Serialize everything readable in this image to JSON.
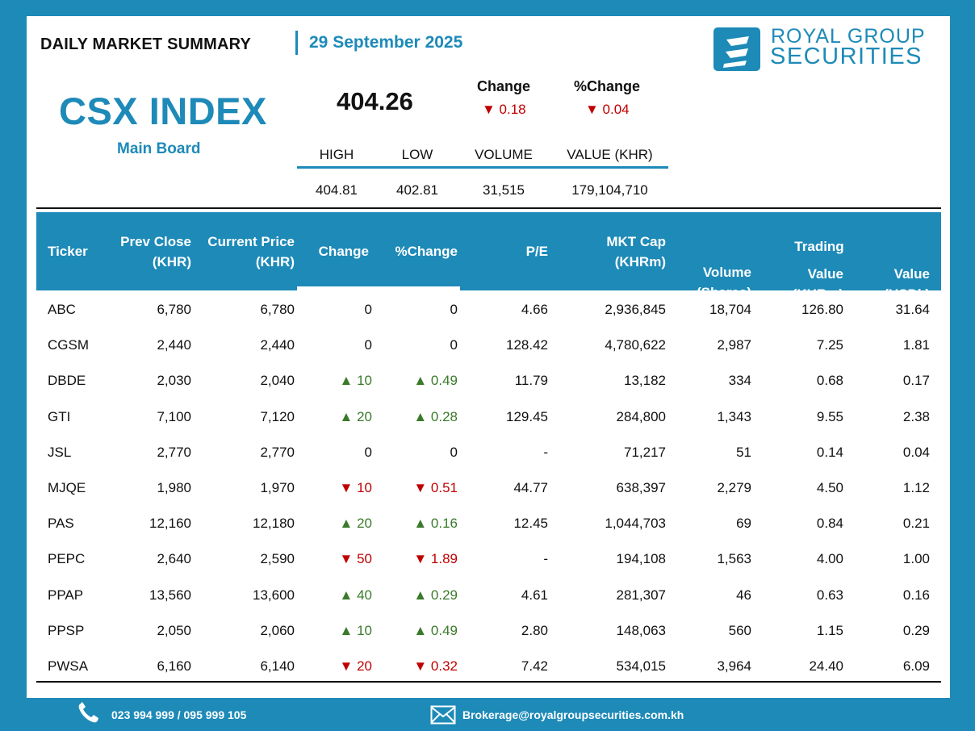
{
  "header": {
    "title": "DAILY MARKET SUMMARY",
    "date": "29 September 2025",
    "logo_line1": "ROYAL GROUP",
    "logo_line2": "SECURITIES"
  },
  "index": {
    "name": "CSX INDEX",
    "board": "Main Board",
    "value": "404.26",
    "change_label": "Change",
    "pchange_label": "%Change",
    "change": "▼ 0.18",
    "pchange": "▼ 0.04",
    "stats_headers": [
      "HIGH",
      "LOW",
      "VOLUME",
      "VALUE (KHR)"
    ],
    "stats_values": [
      "404.81",
      "402.81",
      "31,515",
      "179,104,710"
    ]
  },
  "table": {
    "headers": {
      "ticker": "Ticker",
      "prev_close": "Prev Close",
      "prev_close_unit": "(KHR)",
      "current_price": "Current Price",
      "current_price_unit": "(KHR)",
      "change": "Change",
      "pchange": "%Change",
      "pe": "P/E",
      "mktcap": "MKT Cap",
      "mktcap_unit": "(KHRm)",
      "volume": "Volume",
      "volume_unit": "(Shares)",
      "trading_group": "Trading",
      "value_khr": "Value",
      "value_khr_unit": "(KHRm)",
      "value_usd": "Value",
      "value_usd_unit": "(USDk)"
    },
    "rows": [
      {
        "ticker": "ABC",
        "prev": "6,780",
        "cur": "6,780",
        "chg": "0",
        "pchg": "0",
        "dir": "flat",
        "pe": "4.66",
        "mktcap": "2,936,845",
        "vol": "18,704",
        "val_khr": "126.80",
        "val_usd": "31.64"
      },
      {
        "ticker": "CGSM",
        "prev": "2,440",
        "cur": "2,440",
        "chg": "0",
        "pchg": "0",
        "dir": "flat",
        "pe": "128.42",
        "mktcap": "4,780,622",
        "vol": "2,987",
        "val_khr": "7.25",
        "val_usd": "1.81"
      },
      {
        "ticker": "DBDE",
        "prev": "2,030",
        "cur": "2,040",
        "chg": "▲ 10",
        "pchg": "▲ 0.49",
        "dir": "up",
        "pe": "11.79",
        "mktcap": "13,182",
        "vol": "334",
        "val_khr": "0.68",
        "val_usd": "0.17"
      },
      {
        "ticker": "GTI",
        "prev": "7,100",
        "cur": "7,120",
        "chg": "▲ 20",
        "pchg": "▲ 0.28",
        "dir": "up",
        "pe": "129.45",
        "mktcap": "284,800",
        "vol": "1,343",
        "val_khr": "9.55",
        "val_usd": "2.38"
      },
      {
        "ticker": "JSL",
        "prev": "2,770",
        "cur": "2,770",
        "chg": "0",
        "pchg": "0",
        "dir": "flat",
        "pe": "-",
        "mktcap": "71,217",
        "vol": "51",
        "val_khr": "0.14",
        "val_usd": "0.04"
      },
      {
        "ticker": "MJQE",
        "prev": "1,980",
        "cur": "1,970",
        "chg": "▼ 10",
        "pchg": "▼ 0.51",
        "dir": "dn",
        "pe": "44.77",
        "mktcap": "638,397",
        "vol": "2,279",
        "val_khr": "4.50",
        "val_usd": "1.12"
      },
      {
        "ticker": "PAS",
        "prev": "12,160",
        "cur": "12,180",
        "chg": "▲ 20",
        "pchg": "▲ 0.16",
        "dir": "up",
        "pe": "12.45",
        "mktcap": "1,044,703",
        "vol": "69",
        "val_khr": "0.84",
        "val_usd": "0.21"
      },
      {
        "ticker": "PEPC",
        "prev": "2,640",
        "cur": "2,590",
        "chg": "▼ 50",
        "pchg": "▼ 1.89",
        "dir": "dn",
        "pe": "-",
        "mktcap": "194,108",
        "vol": "1,563",
        "val_khr": "4.00",
        "val_usd": "1.00"
      },
      {
        "ticker": "PPAP",
        "prev": "13,560",
        "cur": "13,600",
        "chg": "▲ 40",
        "pchg": "▲ 0.29",
        "dir": "up",
        "pe": "4.61",
        "mktcap": "281,307",
        "vol": "46",
        "val_khr": "0.63",
        "val_usd": "0.16"
      },
      {
        "ticker": "PPSP",
        "prev": "2,050",
        "cur": "2,060",
        "chg": "▲ 10",
        "pchg": "▲ 0.49",
        "dir": "up",
        "pe": "2.80",
        "mktcap": "148,063",
        "vol": "560",
        "val_khr": "1.15",
        "val_usd": "0.29"
      },
      {
        "ticker": "PWSA",
        "prev": "6,160",
        "cur": "6,140",
        "chg": "▼ 20",
        "pchg": "▼ 0.32",
        "dir": "dn",
        "pe": "7.42",
        "mktcap": "534,015",
        "vol": "3,964",
        "val_khr": "24.40",
        "val_usd": "6.09"
      }
    ]
  },
  "footer": {
    "phone": "023 994 999 / 095 999 105",
    "email": "Brokerage@royalgroupsecurities.com.kh"
  },
  "colors": {
    "brand": "#1d8ab8",
    "up": "#3a7a2a",
    "down": "#c00000"
  }
}
